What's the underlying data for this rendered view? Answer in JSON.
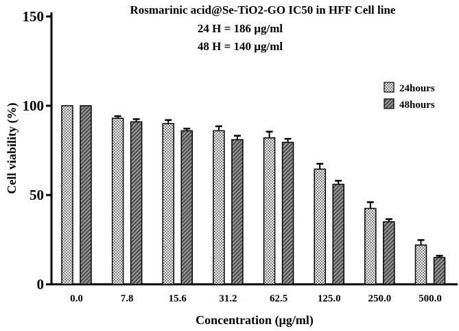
{
  "chart_data": {
    "type": "bar",
    "title": "Rosmarinic acid@Se-TiO2-GO IC50 in HFF Cell line",
    "subtitle_lines": [
      "24 H = 186 µg/ml",
      "48 H = 140 µg/ml"
    ],
    "xlabel": "Concentration (µg/ml)",
    "ylabel": "Cell viability (%)",
    "ylim": [
      0,
      150
    ],
    "yticks": [
      0,
      50,
      100,
      150
    ],
    "categories": [
      "0.0",
      "7.8",
      "15.6",
      "31.2",
      "62.5",
      "125.0",
      "250.0",
      "500.0"
    ],
    "series": [
      {
        "name": "24hours",
        "values": [
          100,
          93,
          90,
          86,
          82,
          64.5,
          42.5,
          22
        ],
        "errors": [
          0,
          1.2,
          2,
          2.5,
          3.5,
          3,
          3.5,
          2.8
        ],
        "pattern": "checker",
        "color": "#8c8c8c"
      },
      {
        "name": "48hours",
        "values": [
          100,
          91,
          86,
          81,
          79.5,
          56,
          35,
          15
        ],
        "errors": [
          0,
          1.5,
          1.2,
          2.2,
          2,
          2,
          1.5,
          1
        ],
        "pattern": "hatch",
        "color": "#6e6e6e"
      }
    ],
    "legend_position": "top-right",
    "grid": false
  }
}
